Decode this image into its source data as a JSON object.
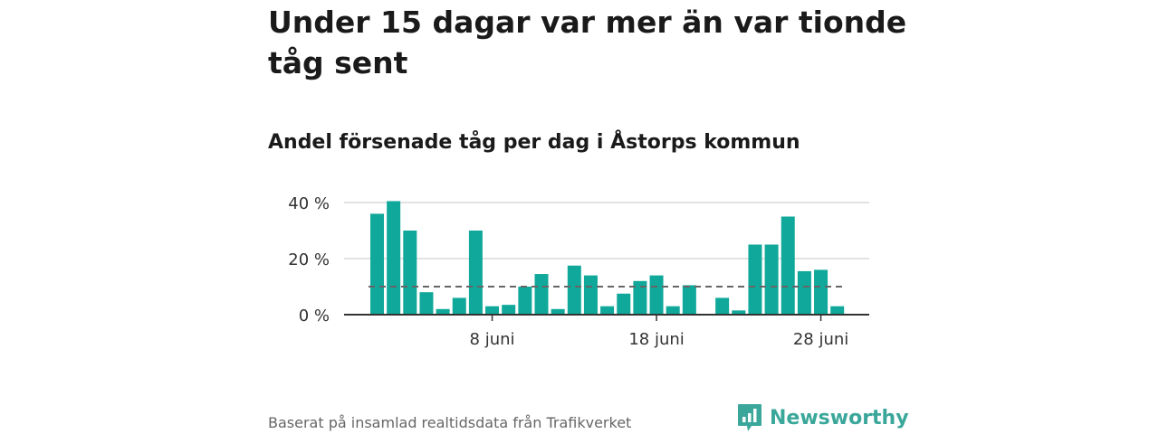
{
  "title": "Under 15 dagar var mer än var tionde tåg sent",
  "subtitle": "Andel försenade tåg per dag i Åstorps kommun",
  "source": "Baserat på insamlad realtidsdata från Trafikverket",
  "brand": {
    "name": "Newsworthy",
    "logo_icon": "bar-chart-speech-bubble-icon"
  },
  "colors": {
    "bar": "#10a89a",
    "reference_line": "#666666",
    "grid": "#d9d9d9",
    "axis": "#333333",
    "brand": "#3aa79a"
  },
  "chart_data": {
    "type": "bar",
    "x_tick_labels": [
      "8 juni",
      "18 juni",
      "28 juni"
    ],
    "x_tick_days": [
      8,
      18,
      28
    ],
    "y_tick_labels": [
      "0 %",
      "20 %",
      "40 %"
    ],
    "ylim": [
      0,
      40
    ],
    "grid": true,
    "reference_line": {
      "value": 10,
      "style": "dashed"
    },
    "days": [
      1,
      2,
      3,
      4,
      5,
      6,
      7,
      8,
      9,
      10,
      11,
      12,
      13,
      14,
      15,
      16,
      17,
      18,
      19,
      20,
      21,
      22,
      23,
      24,
      25,
      26,
      27,
      28,
      29,
      30
    ],
    "values": [
      36,
      40.5,
      30,
      8,
      2,
      6,
      30,
      3,
      3.5,
      10,
      14.5,
      2,
      17.5,
      14,
      3,
      7.5,
      12,
      14,
      3,
      10.5,
      null,
      6,
      1.5,
      25,
      25,
      35,
      15.5,
      16,
      3,
      null
    ]
  }
}
